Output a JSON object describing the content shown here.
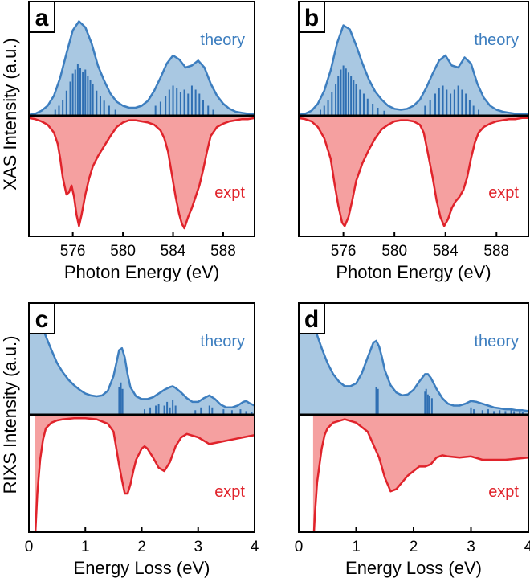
{
  "colors": {
    "theory_line": "#3d7ebf",
    "theory_fill": "#a9c8e2",
    "theory_sticks": "#2f6fb3",
    "expt_line": "#e0232b",
    "expt_fill": "#f5a0a0"
  },
  "ylabels": {
    "xas": "XAS Intensity (a.u.)",
    "rixs": "RIXS Intensity (a.u.)"
  },
  "chart_data": [
    {
      "panel": "a",
      "type": "line",
      "theory_label": "theory",
      "expt_label": "expt",
      "xlabel": "Photon Energy (eV)",
      "xlim": [
        572.5,
        590.5
      ],
      "xticks": [
        576,
        580,
        584,
        588
      ],
      "theory": {
        "x": [
          572.5,
          573,
          573.5,
          574,
          574.5,
          575,
          575.5,
          576,
          576.5,
          577,
          577.5,
          578,
          578.5,
          579,
          579.5,
          580,
          580.5,
          581,
          581.5,
          582,
          582.5,
          583,
          583.5,
          584,
          584.5,
          585,
          585.5,
          586,
          586.5,
          587,
          587.5,
          588,
          588.5,
          589,
          589.5,
          590,
          590.5
        ],
        "y": [
          0.01,
          0.02,
          0.05,
          0.1,
          0.2,
          0.38,
          0.62,
          0.85,
          0.94,
          0.88,
          0.72,
          0.5,
          0.35,
          0.22,
          0.14,
          0.1,
          0.08,
          0.08,
          0.1,
          0.15,
          0.25,
          0.38,
          0.52,
          0.6,
          0.56,
          0.48,
          0.5,
          0.55,
          0.48,
          0.32,
          0.2,
          0.12,
          0.07,
          0.04,
          0.03,
          0.02,
          0.02
        ]
      },
      "sticks": {
        "x": [
          574.6,
          574.9,
          575.2,
          575.5,
          575.8,
          576.0,
          576.2,
          576.4,
          576.6,
          576.8,
          577.0,
          577.2,
          577.4,
          577.6,
          577.9,
          578.2,
          578.5,
          578.9,
          579.4,
          582.6,
          583.0,
          583.4,
          583.7,
          584.0,
          584.3,
          584.6,
          584.9,
          585.2,
          585.5,
          585.8,
          586.1,
          586.4,
          586.8,
          587.2
        ],
        "y": [
          0.06,
          0.1,
          0.16,
          0.25,
          0.34,
          0.42,
          0.46,
          0.52,
          0.48,
          0.44,
          0.46,
          0.4,
          0.36,
          0.32,
          0.25,
          0.2,
          0.15,
          0.1,
          0.06,
          0.1,
          0.14,
          0.2,
          0.26,
          0.3,
          0.28,
          0.24,
          0.26,
          0.22,
          0.3,
          0.26,
          0.22,
          0.16,
          0.1,
          0.06
        ]
      },
      "expt": {
        "x": [
          572.5,
          573,
          573.5,
          574,
          574.5,
          574.8,
          575,
          575.2,
          575.5,
          575.7,
          575.9,
          576.1,
          576.3,
          576.5,
          576.7,
          577,
          577.3,
          577.6,
          578,
          578.5,
          579,
          579.5,
          580,
          580.5,
          581,
          581.5,
          582,
          582.5,
          583,
          583.3,
          583.6,
          583.9,
          584.2,
          584.5,
          584.7,
          584.9,
          585.2,
          585.5,
          585.8,
          586.1,
          586.4,
          586.7,
          587,
          587.5,
          588,
          588.5,
          589,
          589.5,
          590,
          590.5
        ],
        "y": [
          0.02,
          0.03,
          0.05,
          0.08,
          0.15,
          0.25,
          0.38,
          0.55,
          0.7,
          0.68,
          0.62,
          0.72,
          0.88,
          0.98,
          0.88,
          0.7,
          0.56,
          0.45,
          0.36,
          0.27,
          0.18,
          0.1,
          0.06,
          0.04,
          0.04,
          0.05,
          0.06,
          0.08,
          0.13,
          0.2,
          0.32,
          0.52,
          0.72,
          0.88,
          0.96,
          1.0,
          0.9,
          0.82,
          0.72,
          0.62,
          0.48,
          0.32,
          0.18,
          0.1,
          0.07,
          0.05,
          0.04,
          0.03,
          0.03,
          0.02
        ]
      }
    },
    {
      "panel": "b",
      "type": "line",
      "theory_label": "theory",
      "expt_label": "expt",
      "xlabel": "Photon Energy (eV)",
      "xlim": [
        572.5,
        590.5
      ],
      "xticks": [
        576,
        580,
        584,
        588
      ],
      "theory": {
        "x": [
          572.5,
          573,
          573.5,
          574,
          574.5,
          575,
          575.5,
          576,
          576.5,
          577,
          577.5,
          578,
          578.5,
          579,
          579.5,
          580,
          580.5,
          581,
          581.5,
          582,
          582.5,
          583,
          583.5,
          584,
          584.5,
          585,
          585.5,
          586,
          586.5,
          587,
          587.5,
          588,
          588.5,
          589,
          589.5,
          590,
          590.5
        ],
        "y": [
          0.01,
          0.02,
          0.05,
          0.12,
          0.25,
          0.45,
          0.72,
          0.9,
          0.86,
          0.7,
          0.52,
          0.36,
          0.24,
          0.16,
          0.1,
          0.07,
          0.06,
          0.07,
          0.1,
          0.16,
          0.28,
          0.42,
          0.55,
          0.6,
          0.5,
          0.48,
          0.58,
          0.52,
          0.32,
          0.18,
          0.1,
          0.06,
          0.04,
          0.03,
          0.02,
          0.02,
          0.02
        ]
      },
      "sticks": {
        "x": [
          574.2,
          574.5,
          574.8,
          575.1,
          575.4,
          575.6,
          575.8,
          576.0,
          576.2,
          576.4,
          576.6,
          576.8,
          577.0,
          577.3,
          577.6,
          577.9,
          578.3,
          578.7,
          579.2,
          582.4,
          582.8,
          583.2,
          583.5,
          583.8,
          584.1,
          584.4,
          584.7,
          585.0,
          585.3,
          585.6,
          585.9,
          586.2,
          586.6
        ],
        "y": [
          0.06,
          0.1,
          0.16,
          0.24,
          0.32,
          0.4,
          0.46,
          0.5,
          0.47,
          0.43,
          0.4,
          0.36,
          0.32,
          0.26,
          0.22,
          0.17,
          0.12,
          0.08,
          0.05,
          0.1,
          0.16,
          0.22,
          0.28,
          0.3,
          0.26,
          0.22,
          0.26,
          0.3,
          0.26,
          0.22,
          0.16,
          0.1,
          0.06
        ]
      },
      "expt": {
        "x": [
          572.5,
          573,
          573.5,
          574,
          574.5,
          575,
          575.3,
          575.6,
          575.9,
          576.1,
          576.4,
          576.7,
          577,
          577.5,
          578,
          578.5,
          579,
          579.5,
          580,
          580.5,
          581,
          581.5,
          582,
          582.3,
          582.6,
          583,
          583.3,
          583.6,
          583.9,
          584.2,
          584.5,
          584.8,
          585.1,
          585.4,
          585.7,
          586,
          586.3,
          586.6,
          587,
          587.5,
          588,
          588.5,
          589,
          589.5,
          590,
          590.5
        ],
        "y": [
          0.02,
          0.03,
          0.05,
          0.1,
          0.2,
          0.38,
          0.6,
          0.8,
          0.95,
          0.98,
          0.9,
          0.75,
          0.58,
          0.42,
          0.3,
          0.2,
          0.12,
          0.08,
          0.05,
          0.04,
          0.04,
          0.05,
          0.08,
          0.15,
          0.32,
          0.55,
          0.75,
          0.9,
          0.98,
          0.92,
          0.82,
          0.76,
          0.72,
          0.66,
          0.55,
          0.38,
          0.24,
          0.15,
          0.1,
          0.07,
          0.05,
          0.04,
          0.03,
          0.03,
          0.02,
          0.02
        ]
      }
    },
    {
      "panel": "c",
      "type": "line",
      "theory_label": "theory",
      "expt_label": "expt",
      "xlabel": "Energy Loss (eV)",
      "xlim": [
        0,
        4
      ],
      "xticks": [
        0,
        1,
        2,
        3,
        4
      ],
      "theory": {
        "x": [
          0,
          0.1,
          0.2,
          0.3,
          0.4,
          0.5,
          0.6,
          0.7,
          0.8,
          0.9,
          1.0,
          1.1,
          1.2,
          1.3,
          1.4,
          1.5,
          1.55,
          1.6,
          1.65,
          1.7,
          1.75,
          1.8,
          1.9,
          2.0,
          2.1,
          2.2,
          2.3,
          2.4,
          2.5,
          2.55,
          2.6,
          2.7,
          2.8,
          2.9,
          3.0,
          3.1,
          3.2,
          3.3,
          3.4,
          3.5,
          3.6,
          3.7,
          3.8,
          3.85,
          3.9,
          4.0
        ],
        "y": [
          1.2,
          1.12,
          1.02,
          0.85,
          0.7,
          0.56,
          0.46,
          0.38,
          0.32,
          0.27,
          0.23,
          0.21,
          0.2,
          0.21,
          0.26,
          0.42,
          0.56,
          0.7,
          0.72,
          0.62,
          0.44,
          0.3,
          0.2,
          0.17,
          0.17,
          0.19,
          0.23,
          0.27,
          0.3,
          0.31,
          0.29,
          0.24,
          0.18,
          0.14,
          0.14,
          0.18,
          0.21,
          0.17,
          0.11,
          0.08,
          0.08,
          0.1,
          0.14,
          0.15,
          0.13,
          0.1
        ]
      },
      "sticks": {
        "x": [
          1.6,
          1.63,
          1.66,
          2.05,
          2.15,
          2.25,
          2.3,
          2.4,
          2.45,
          2.5,
          2.55,
          2.6,
          2.95,
          3.05,
          3.2,
          3.25,
          3.45,
          3.6,
          3.75,
          3.85,
          3.95
        ],
        "y": [
          0.3,
          0.35,
          0.28,
          0.06,
          0.08,
          0.1,
          0.12,
          0.1,
          0.14,
          0.08,
          0.16,
          0.1,
          0.05,
          0.08,
          0.1,
          0.08,
          0.06,
          0.05,
          0.06,
          0.04,
          0.03
        ]
      },
      "expt": {
        "x": [
          0.1,
          0.12,
          0.15,
          0.2,
          0.25,
          0.3,
          0.4,
          0.5,
          0.6,
          0.8,
          1.0,
          1.2,
          1.4,
          1.5,
          1.6,
          1.65,
          1.7,
          1.75,
          1.8,
          1.85,
          1.9,
          2.0,
          2.05,
          2.1,
          2.2,
          2.3,
          2.4,
          2.5,
          2.6,
          2.7,
          2.8,
          3.0,
          3.2,
          3.4,
          3.6,
          3.8,
          4.0
        ],
        "y": [
          1.2,
          1.0,
          0.7,
          0.4,
          0.22,
          0.12,
          0.07,
          0.05,
          0.04,
          0.03,
          0.03,
          0.04,
          0.08,
          0.15,
          0.45,
          0.58,
          0.7,
          0.7,
          0.62,
          0.5,
          0.4,
          0.3,
          0.28,
          0.3,
          0.38,
          0.47,
          0.5,
          0.42,
          0.28,
          0.2,
          0.17,
          0.2,
          0.26,
          0.24,
          0.22,
          0.2,
          0.18
        ]
      }
    },
    {
      "panel": "d",
      "type": "line",
      "theory_label": "theory",
      "expt_label": "expt",
      "xlabel": "Energy Loss (eV)",
      "xlim": [
        0,
        4
      ],
      "xticks": [
        0,
        1,
        2,
        3,
        4
      ],
      "theory": {
        "x": [
          0,
          0.1,
          0.2,
          0.3,
          0.4,
          0.5,
          0.6,
          0.7,
          0.8,
          0.9,
          1.0,
          1.1,
          1.2,
          1.25,
          1.3,
          1.35,
          1.4,
          1.45,
          1.5,
          1.6,
          1.7,
          1.8,
          1.9,
          2.0,
          2.1,
          2.2,
          2.25,
          2.3,
          2.4,
          2.5,
          2.6,
          2.7,
          2.8,
          2.9,
          3.0,
          3.1,
          3.2,
          3.3,
          3.4,
          3.5,
          3.6,
          3.7,
          3.8,
          3.9,
          4.0
        ],
        "y": [
          1.3,
          1.2,
          1.08,
          0.9,
          0.72,
          0.56,
          0.44,
          0.36,
          0.31,
          0.31,
          0.34,
          0.45,
          0.62,
          0.7,
          0.78,
          0.8,
          0.74,
          0.62,
          0.48,
          0.32,
          0.24,
          0.21,
          0.22,
          0.27,
          0.36,
          0.44,
          0.44,
          0.4,
          0.28,
          0.18,
          0.12,
          0.1,
          0.1,
          0.12,
          0.15,
          0.14,
          0.12,
          0.1,
          0.08,
          0.07,
          0.06,
          0.06,
          0.05,
          0.05,
          0.04
        ]
      },
      "sticks": {
        "x": [
          1.35,
          1.38,
          2.2,
          2.22,
          2.25,
          2.28,
          2.32,
          3.0,
          3.05,
          3.2,
          3.3,
          3.4,
          3.5,
          3.6,
          3.7,
          3.75,
          3.85,
          3.9
        ],
        "y": [
          0.3,
          0.28,
          0.25,
          0.28,
          0.22,
          0.2,
          0.18,
          0.08,
          0.06,
          0.05,
          0.06,
          0.04,
          0.05,
          0.04,
          0.06,
          0.04,
          0.05,
          0.03
        ]
      },
      "expt": {
        "x": [
          0.25,
          0.28,
          0.32,
          0.4,
          0.45,
          0.5,
          0.6,
          0.8,
          1.0,
          1.2,
          1.4,
          1.5,
          1.6,
          1.7,
          1.8,
          1.9,
          2.0,
          2.1,
          2.2,
          2.3,
          2.4,
          2.5,
          2.6,
          2.8,
          3.0,
          3.2,
          3.4,
          3.6,
          3.8,
          4.0
        ],
        "y": [
          1.2,
          0.9,
          0.6,
          0.3,
          0.18,
          0.12,
          0.07,
          0.04,
          0.07,
          0.15,
          0.38,
          0.56,
          0.68,
          0.66,
          0.6,
          0.54,
          0.5,
          0.46,
          0.46,
          0.44,
          0.38,
          0.36,
          0.37,
          0.38,
          0.37,
          0.4,
          0.4,
          0.4,
          0.39,
          0.38
        ]
      }
    }
  ]
}
